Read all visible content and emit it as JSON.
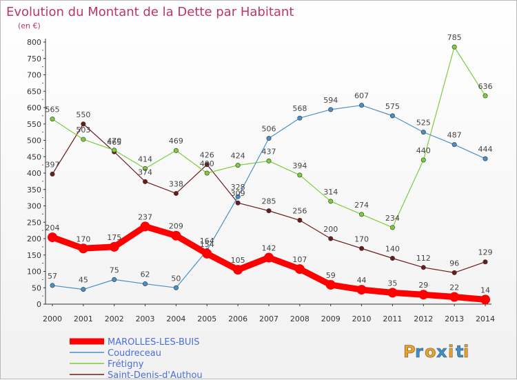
{
  "chart_data": {
    "type": "line",
    "title": "Evolution du Montant de la Dette par Habitant",
    "subtitle": "(en €)",
    "x": [
      "2000",
      "2001",
      "2002",
      "2003",
      "2004",
      "2005",
      "2006",
      "2007",
      "2008",
      "2009",
      "2010",
      "2011",
      "2012",
      "2013",
      "2014"
    ],
    "ylim": [
      0,
      800
    ],
    "yticks": [
      0,
      50,
      100,
      150,
      200,
      250,
      300,
      350,
      400,
      450,
      500,
      550,
      600,
      650,
      700,
      750,
      800
    ],
    "grid": false,
    "legend_placement": "bottom-left",
    "series": [
      {
        "name": "MAROLLES-LES-BUIS",
        "color": "#ff0000",
        "values": [
          204,
          170,
          175,
          237,
          209,
          154,
          105,
          142,
          107,
          59,
          44,
          35,
          29,
          22,
          14
        ]
      },
      {
        "name": "Coudreceau",
        "color": "#4a8fc8",
        "values": [
          57,
          45,
          75,
          62,
          50,
          164,
          328,
          506,
          568,
          594,
          607,
          575,
          525,
          487,
          444
        ]
      },
      {
        "name": "Frétigny",
        "color": "#7dcc3c",
        "values": [
          565,
          503,
          470,
          414,
          469,
          400,
          424,
          437,
          394,
          314,
          274,
          234,
          440,
          785,
          636
        ]
      },
      {
        "name": "Saint-Denis-d'Authou",
        "color": "#6b1b1b",
        "values": [
          397,
          550,
          465,
          374,
          338,
          426,
          309,
          285,
          256,
          200,
          170,
          140,
          112,
          96,
          129
        ]
      }
    ]
  },
  "brand": {
    "text": "Proxiti",
    "letters": [
      "P",
      "r",
      "o",
      "x",
      "i",
      "t",
      "i"
    ],
    "colors": [
      "#f0a020",
      "#3a8fd0",
      "#f0a020",
      "#3a8fd0",
      "#f0a020",
      "#3a8fd0",
      "#f0a020"
    ]
  }
}
